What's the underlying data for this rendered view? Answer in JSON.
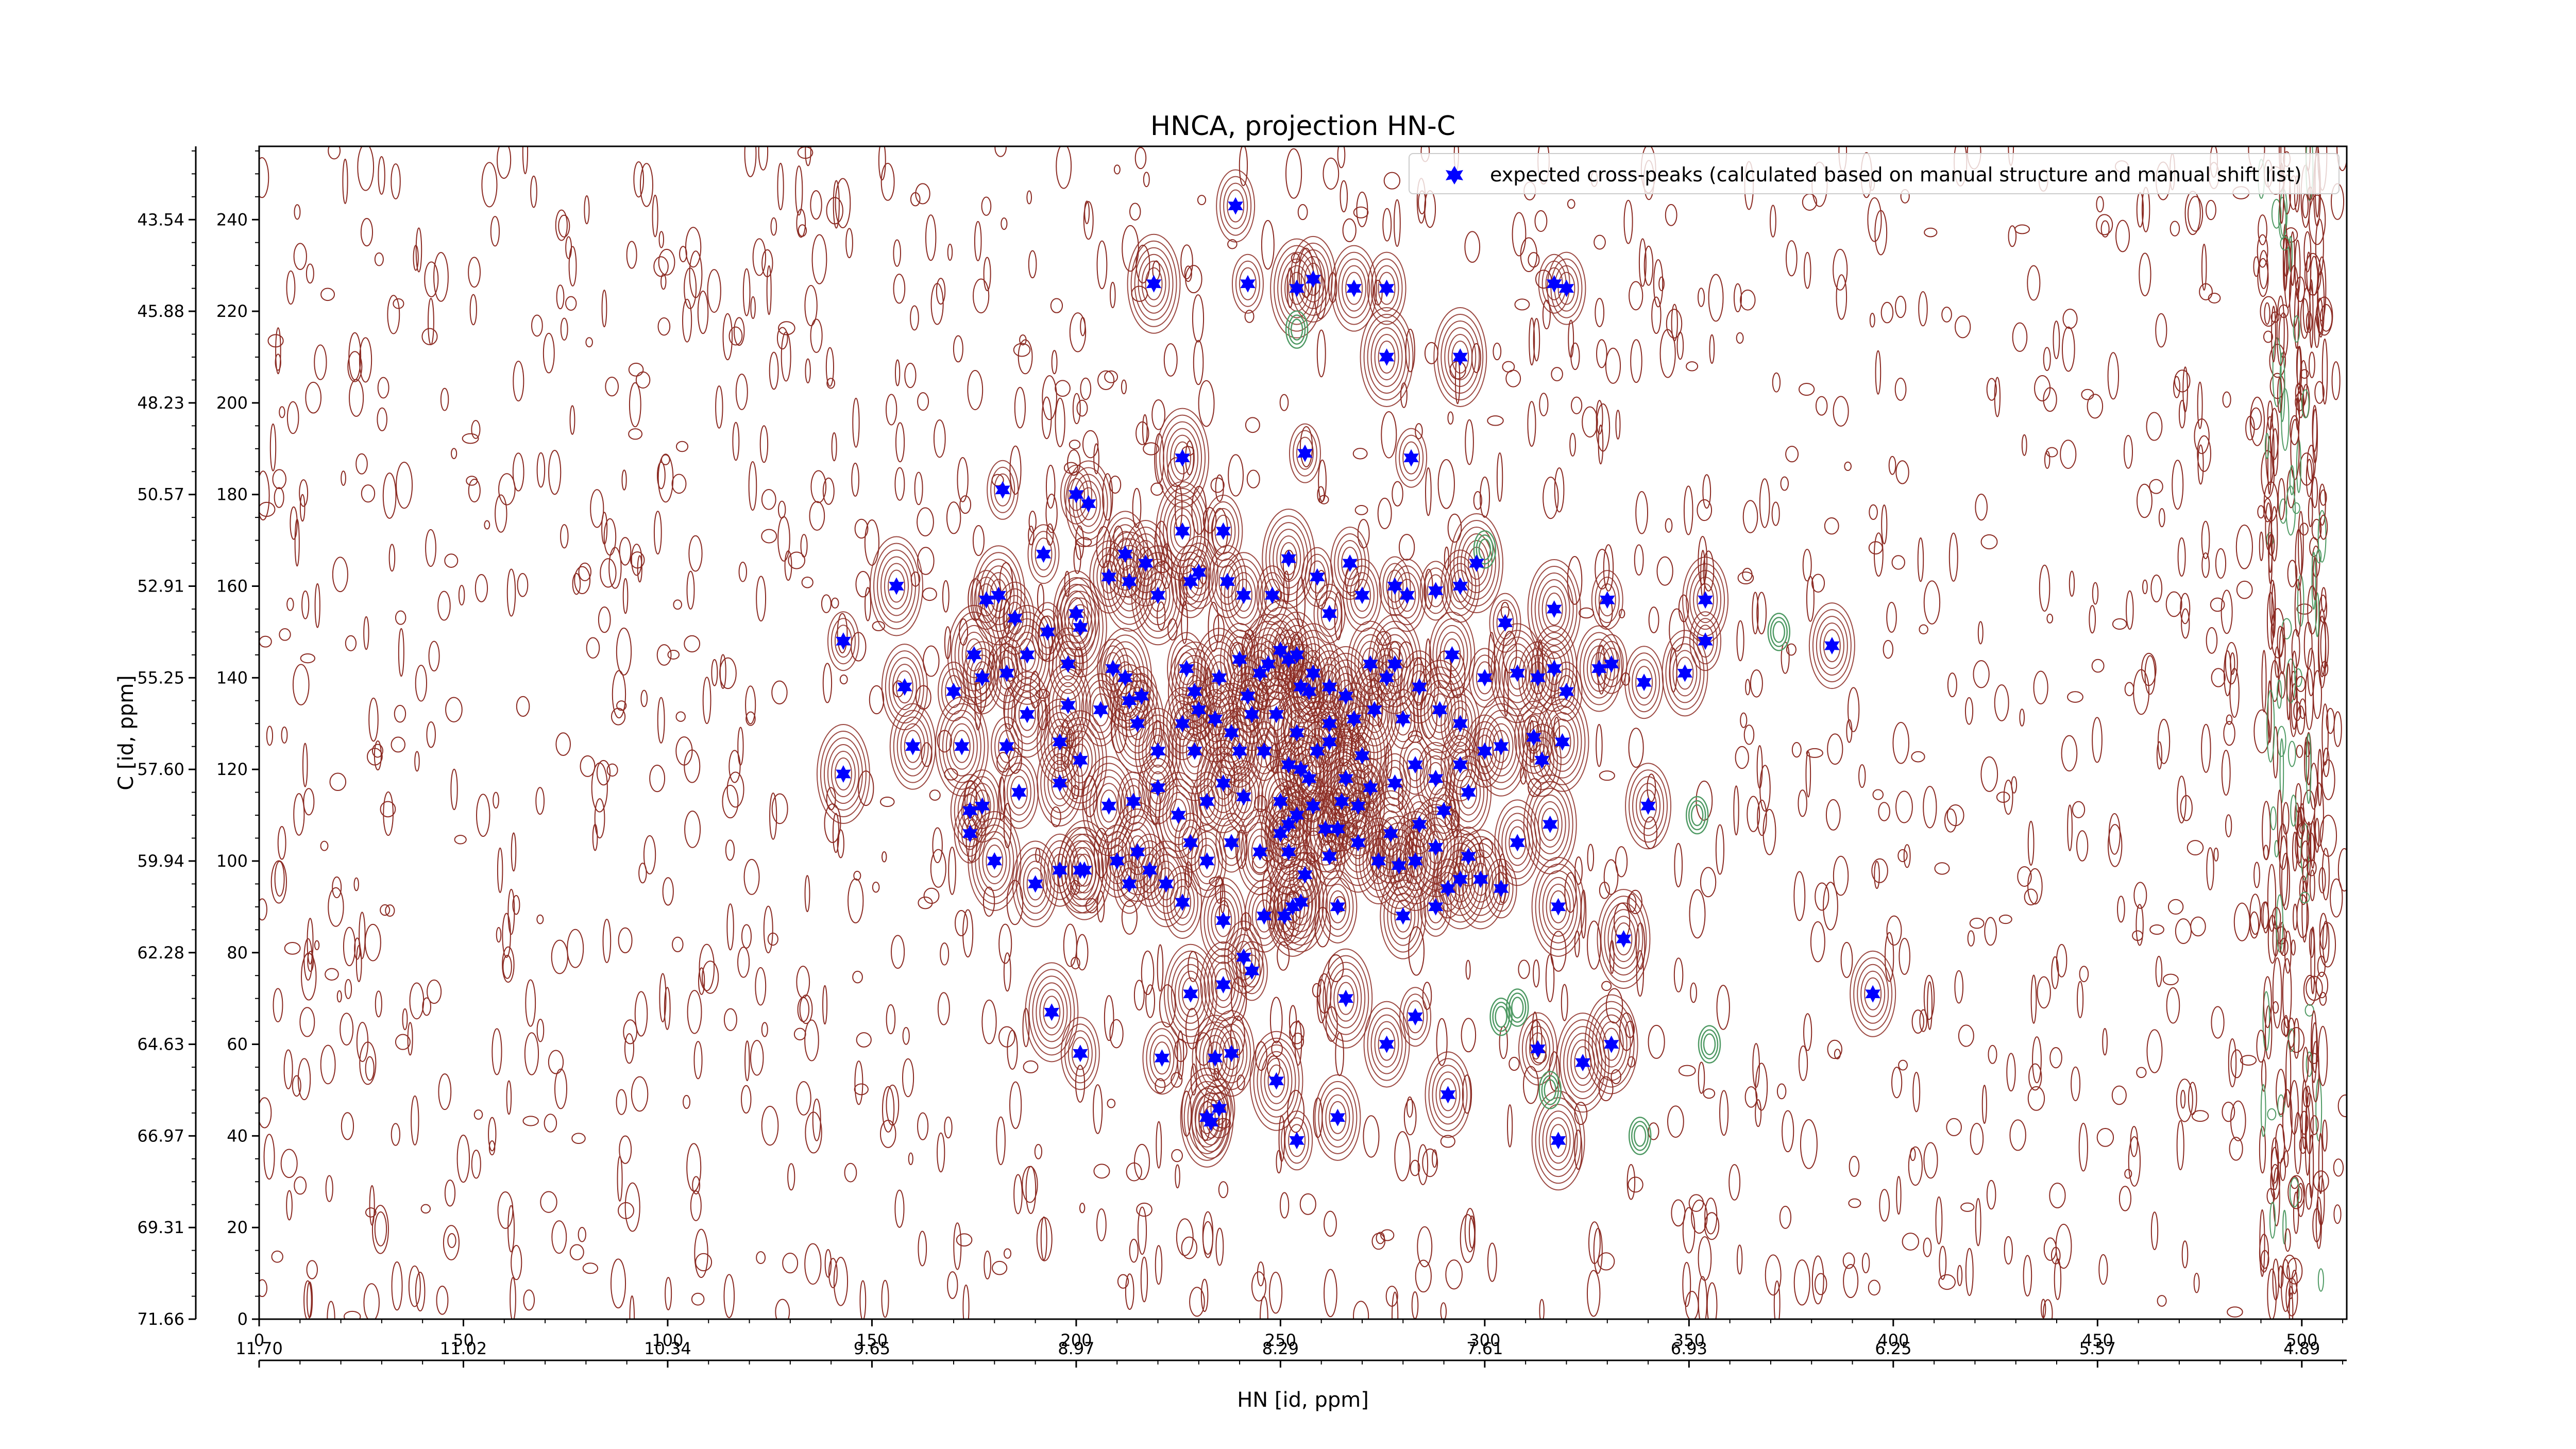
{
  "chart_data": {
    "type": "scatter",
    "title": "HNCA, projection HN-C",
    "xlabel": "HN [id, ppm]",
    "ylabel": "C [id, ppm]",
    "xlim": [
      0,
      511
    ],
    "ylim": [
      0,
      256
    ],
    "x_ticks": [
      0,
      50,
      100,
      150,
      200,
      250,
      300,
      350,
      400,
      450,
      500
    ],
    "y_ticks": [
      0,
      20,
      40,
      60,
      80,
      100,
      120,
      140,
      160,
      180,
      200,
      220,
      240
    ],
    "x_ppm_ticks": [
      "11.70",
      "11.02",
      "10.34",
      "9.65",
      "8.97",
      "8.29",
      "7.61",
      "6.93",
      "6.25",
      "5.57",
      "4.89"
    ],
    "y_ppm_ticks": [
      "71.66",
      "69.31",
      "66.97",
      "64.63",
      "62.28",
      "59.94",
      "57.60",
      "55.25",
      "52.91",
      "50.57",
      "48.23",
      "45.88",
      "43.54"
    ],
    "grid": false,
    "legend": {
      "position": "top-right",
      "entries": [
        "expected cross-peaks (calculated based on manual structure and manual shift list)"
      ]
    },
    "colors": {
      "marker": "#0000ff",
      "contour_positive": "#8b2a22",
      "contour_negative": "#4f9a64"
    },
    "series": [
      {
        "name": "expected cross-peaks (calculated based on manual structure and manual shift list)",
        "points": [
          [
            239,
            243
          ],
          [
            219,
            226
          ],
          [
            242,
            226
          ],
          [
            254,
            225
          ],
          [
            258,
            227
          ],
          [
            268,
            225
          ],
          [
            276,
            225
          ],
          [
            317,
            226
          ],
          [
            320,
            225
          ],
          [
            276,
            210
          ],
          [
            294,
            210
          ],
          [
            256,
            189
          ],
          [
            282,
            188
          ],
          [
            226,
            188
          ],
          [
            182,
            181
          ],
          [
            200,
            180
          ],
          [
            203,
            178
          ],
          [
            226,
            172
          ],
          [
            192,
            167
          ],
          [
            212,
            167
          ],
          [
            217,
            165
          ],
          [
            236,
            172
          ],
          [
            252,
            166
          ],
          [
            228,
            161
          ],
          [
            208,
            162
          ],
          [
            181,
            158
          ],
          [
            156,
            160
          ],
          [
            178,
            157
          ],
          [
            185,
            153
          ],
          [
            200,
            154
          ],
          [
            201,
            151
          ],
          [
            213,
            161
          ],
          [
            220,
            158
          ],
          [
            230,
            163
          ],
          [
            237,
            161
          ],
          [
            241,
            158
          ],
          [
            248,
            158
          ],
          [
            259,
            162
          ],
          [
            262,
            154
          ],
          [
            267,
            165
          ],
          [
            270,
            158
          ],
          [
            278,
            160
          ],
          [
            281,
            158
          ],
          [
            288,
            159
          ],
          [
            294,
            160
          ],
          [
            298,
            165
          ],
          [
            305,
            152
          ],
          [
            317,
            155
          ],
          [
            330,
            157
          ],
          [
            354,
            157
          ],
          [
            354,
            148
          ],
          [
            385,
            147
          ],
          [
            143,
            148
          ],
          [
            175,
            145
          ],
          [
            177,
            140
          ],
          [
            183,
            141
          ],
          [
            188,
            145
          ],
          [
            193,
            150
          ],
          [
            198,
            143
          ],
          [
            209,
            142
          ],
          [
            212,
            140
          ],
          [
            216,
            136
          ],
          [
            227,
            142
          ],
          [
            229,
            137
          ],
          [
            235,
            140
          ],
          [
            240,
            144
          ],
          [
            242,
            136
          ],
          [
            245,
            141
          ],
          [
            247,
            143
          ],
          [
            250,
            146
          ],
          [
            252,
            144
          ],
          [
            254,
            145
          ],
          [
            255,
            138
          ],
          [
            258,
            141
          ],
          [
            262,
            138
          ],
          [
            266,
            136
          ],
          [
            272,
            143
          ],
          [
            276,
            140
          ],
          [
            278,
            143
          ],
          [
            284,
            138
          ],
          [
            292,
            145
          ],
          [
            300,
            140
          ],
          [
            308,
            141
          ],
          [
            313,
            140
          ],
          [
            317,
            142
          ],
          [
            320,
            137
          ],
          [
            328,
            142
          ],
          [
            331,
            143
          ],
          [
            339,
            139
          ],
          [
            349,
            141
          ],
          [
            158,
            138
          ],
          [
            170,
            137
          ],
          [
            188,
            132
          ],
          [
            198,
            134
          ],
          [
            206,
            133
          ],
          [
            213,
            135
          ],
          [
            215,
            130
          ],
          [
            226,
            130
          ],
          [
            230,
            133
          ],
          [
            234,
            131
          ],
          [
            238,
            128
          ],
          [
            243,
            132
          ],
          [
            249,
            132
          ],
          [
            254,
            128
          ],
          [
            257,
            137
          ],
          [
            262,
            130
          ],
          [
            268,
            131
          ],
          [
            273,
            133
          ],
          [
            280,
            131
          ],
          [
            289,
            133
          ],
          [
            294,
            130
          ],
          [
            304,
            125
          ],
          [
            312,
            127
          ],
          [
            319,
            126
          ],
          [
            172,
            125
          ],
          [
            183,
            125
          ],
          [
            196,
            126
          ],
          [
            201,
            122
          ],
          [
            220,
            124
          ],
          [
            229,
            124
          ],
          [
            240,
            124
          ],
          [
            246,
            124
          ],
          [
            252,
            121
          ],
          [
            255,
            120
          ],
          [
            257,
            118
          ],
          [
            259,
            124
          ],
          [
            262,
            126
          ],
          [
            266,
            118
          ],
          [
            270,
            123
          ],
          [
            278,
            117
          ],
          [
            283,
            121
          ],
          [
            288,
            118
          ],
          [
            294,
            121
          ],
          [
            300,
            124
          ],
          [
            314,
            122
          ],
          [
            143,
            119
          ],
          [
            160,
            125
          ],
          [
            174,
            111
          ],
          [
            177,
            112
          ],
          [
            186,
            115
          ],
          [
            196,
            117
          ],
          [
            208,
            112
          ],
          [
            214,
            113
          ],
          [
            220,
            116
          ],
          [
            225,
            110
          ],
          [
            232,
            113
          ],
          [
            236,
            117
          ],
          [
            241,
            114
          ],
          [
            250,
            113
          ],
          [
            252,
            108
          ],
          [
            254,
            110
          ],
          [
            258,
            112
          ],
          [
            261,
            107
          ],
          [
            265,
            113
          ],
          [
            269,
            112
          ],
          [
            272,
            116
          ],
          [
            277,
            106
          ],
          [
            284,
            108
          ],
          [
            290,
            111
          ],
          [
            296,
            115
          ],
          [
            308,
            104
          ],
          [
            316,
            108
          ],
          [
            340,
            112
          ],
          [
            174,
            106
          ],
          [
            180,
            100
          ],
          [
            190,
            95
          ],
          [
            196,
            98
          ],
          [
            201,
            98
          ],
          [
            210,
            100
          ],
          [
            215,
            102
          ],
          [
            218,
            98
          ],
          [
            222,
            95
          ],
          [
            228,
            104
          ],
          [
            232,
            100
          ],
          [
            238,
            104
          ],
          [
            245,
            102
          ],
          [
            250,
            106
          ],
          [
            252,
            102
          ],
          [
            256,
            97
          ],
          [
            262,
            101
          ],
          [
            264,
            107
          ],
          [
            269,
            104
          ],
          [
            274,
            100
          ],
          [
            279,
            99
          ],
          [
            283,
            100
          ],
          [
            288,
            103
          ],
          [
            294,
            96
          ],
          [
            296,
            101
          ],
          [
            304,
            94
          ],
          [
            318,
            90
          ],
          [
            202,
            98
          ],
          [
            213,
            95
          ],
          [
            226,
            91
          ],
          [
            236,
            87
          ],
          [
            246,
            88
          ],
          [
            251,
            88
          ],
          [
            253,
            90
          ],
          [
            255,
            91
          ],
          [
            264,
            90
          ],
          [
            280,
            88
          ],
          [
            288,
            90
          ],
          [
            291,
            94
          ],
          [
            299,
            96
          ],
          [
            334,
            83
          ],
          [
            241,
            79
          ],
          [
            236,
            73
          ],
          [
            228,
            71
          ],
          [
            243,
            76
          ],
          [
            266,
            70
          ],
          [
            283,
            66
          ],
          [
            395,
            71
          ],
          [
            194,
            67
          ],
          [
            201,
            58
          ],
          [
            221,
            57
          ],
          [
            234,
            57
          ],
          [
            238,
            58
          ],
          [
            249,
            52
          ],
          [
            276,
            60
          ],
          [
            313,
            59
          ],
          [
            324,
            56
          ],
          [
            331,
            60
          ],
          [
            291,
            49
          ],
          [
            235,
            46
          ],
          [
            233,
            43
          ],
          [
            232,
            44
          ],
          [
            254,
            39
          ],
          [
            264,
            44
          ],
          [
            318,
            39
          ]
        ]
      }
    ]
  }
}
